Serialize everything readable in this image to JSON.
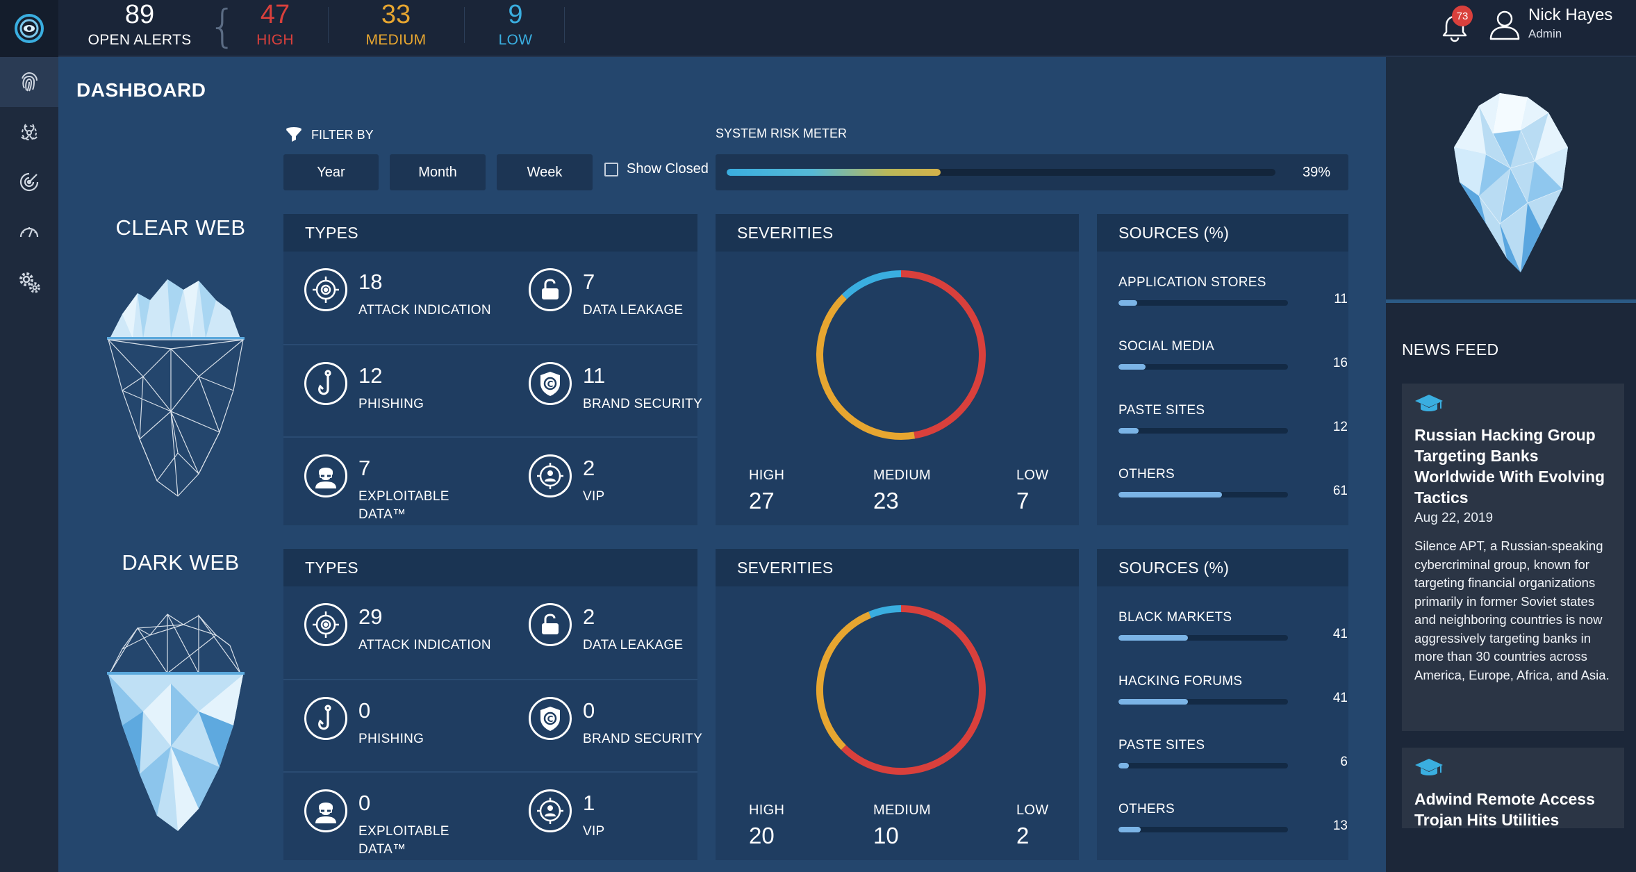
{
  "topbar": {
    "open_alerts": {
      "count": "89",
      "label": "OPEN ALERTS"
    },
    "high": {
      "count": "47",
      "label": "HIGH",
      "color": "#d9403c"
    },
    "medium": {
      "count": "33",
      "label": "MEDIUM",
      "color": "#e7a630"
    },
    "low": {
      "count": "9",
      "label": "LOW",
      "color": "#3aaee0"
    },
    "notifications_count": "73",
    "user": {
      "name": "Nick Hayes",
      "role": "Admin"
    }
  },
  "nav": {
    "items": [
      "fingerprint-icon",
      "biohazard-icon",
      "radar-icon",
      "gauge-icon",
      "gear-icon"
    ],
    "active": 0
  },
  "dashboard": {
    "title": "DASHBOARD",
    "filter_label": "FILTER BY",
    "filters": [
      "Year",
      "Month",
      "Week"
    ],
    "show_closed_label": "Show Closed",
    "risk_meter": {
      "label": "SYSTEM RISK METER",
      "percent": 39,
      "percent_label": "39%"
    }
  },
  "sections": [
    {
      "label": "CLEAR WEB",
      "types_title": "TYPES",
      "types": [
        {
          "count": "18",
          "label": "ATTACK INDICATION",
          "icon": "target-icon"
        },
        {
          "count": "7",
          "label": "DATA LEAKAGE",
          "icon": "unlock-icon"
        },
        {
          "count": "12",
          "label": "PHISHING",
          "icon": "hook-icon"
        },
        {
          "count": "11",
          "label": "BRAND SECURITY",
          "icon": "shield-icon"
        },
        {
          "count": "7",
          "label": "EXPLOITABLE DATA™",
          "icon": "hacker-icon"
        },
        {
          "count": "2",
          "label": "VIP",
          "icon": "vip-icon"
        }
      ],
      "severities_title": "SEVERITIES",
      "severities": {
        "high": {
          "label": "HIGH",
          "value": "27"
        },
        "medium": {
          "label": "MEDIUM",
          "value": "23"
        },
        "low": {
          "label": "LOW",
          "value": "7"
        }
      },
      "sources_title": "SOURCES (%)",
      "sources": [
        {
          "name": "APPLICATION STORES",
          "value": "11"
        },
        {
          "name": "SOCIAL MEDIA",
          "value": "16"
        },
        {
          "name": "PASTE SITES",
          "value": "12"
        },
        {
          "name": "OTHERS",
          "value": "61"
        }
      ]
    },
    {
      "label": "DARK WEB",
      "types_title": "TYPES",
      "types": [
        {
          "count": "29",
          "label": "ATTACK INDICATION",
          "icon": "target-icon"
        },
        {
          "count": "2",
          "label": "DATA LEAKAGE",
          "icon": "unlock-icon"
        },
        {
          "count": "0",
          "label": "PHISHING",
          "icon": "hook-icon"
        },
        {
          "count": "0",
          "label": "BRAND SECURITY",
          "icon": "shield-icon"
        },
        {
          "count": "0",
          "label": "EXPLOITABLE DATA™",
          "icon": "hacker-icon"
        },
        {
          "count": "1",
          "label": "VIP",
          "icon": "vip-icon"
        }
      ],
      "severities_title": "SEVERITIES",
      "severities": {
        "high": {
          "label": "HIGH",
          "value": "20"
        },
        "medium": {
          "label": "MEDIUM",
          "value": "10"
        },
        "low": {
          "label": "LOW",
          "value": "2"
        }
      },
      "sources_title": "SOURCES (%)",
      "sources": [
        {
          "name": "BLACK MARKETS",
          "value": "41"
        },
        {
          "name": "HACKING FORUMS",
          "value": "41"
        },
        {
          "name": "PASTE SITES",
          "value": "6"
        },
        {
          "name": "OTHERS",
          "value": "13"
        }
      ]
    }
  ],
  "colors": {
    "high": "#d9403c",
    "medium": "#e7a630",
    "low": "#3aaee0"
  },
  "news": {
    "title": "NEWS FEED",
    "items": [
      {
        "headline": "Russian Hacking Group Targeting Banks Worldwide With Evolving Tactics",
        "date": "Aug 22, 2019",
        "body": "Silence APT, a Russian-speaking cybercriminal group, known for targeting financial organizations primarily in former Soviet states and neighboring countries is now aggressively targeting banks in more than 30 countries across America, Europe, Africa, and Asia."
      },
      {
        "headline": "Adwind Remote Access Trojan Hits Utilities Sector",
        "date": "",
        "body": ""
      }
    ]
  }
}
